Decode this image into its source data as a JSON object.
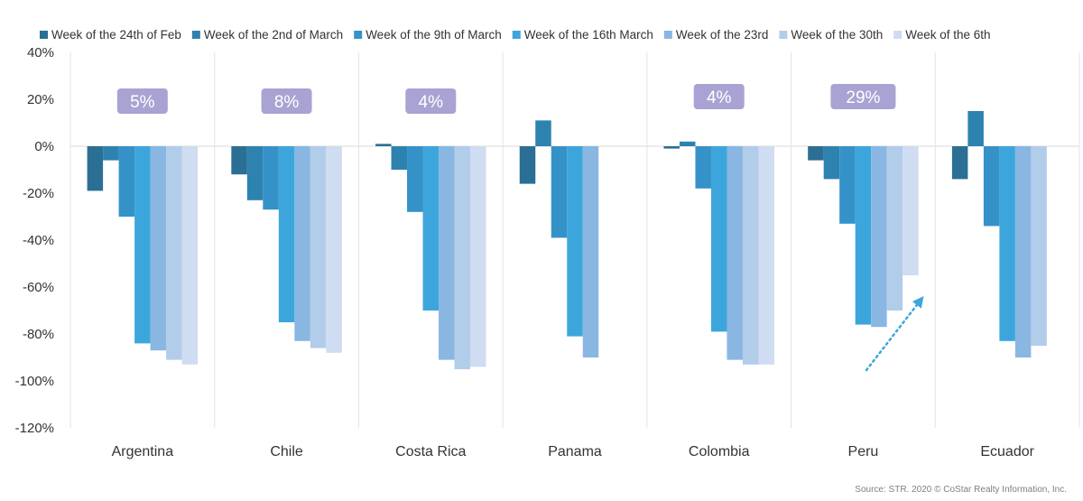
{
  "chart_data": {
    "type": "bar",
    "ylim": [
      -120,
      40
    ],
    "yticks": [
      40,
      20,
      0,
      -20,
      -40,
      -60,
      -80,
      -100,
      -120
    ],
    "tick_suffix": "%",
    "categories": [
      "Argentina",
      "Chile",
      "Costa Rica",
      "Panama",
      "Colombia",
      "Peru",
      "Ecuador"
    ],
    "series": [
      {
        "name": "Week of the 24th of Feb",
        "color": "#2b6f94",
        "values": [
          -19,
          -12,
          1,
          -16,
          -1,
          -6,
          -14
        ]
      },
      {
        "name": "Week of the 2nd of March",
        "color": "#2e82b0",
        "values": [
          -6,
          -23,
          -10,
          11,
          2,
          -14,
          15
        ]
      },
      {
        "name": "Week of the 9th of March",
        "color": "#3592c8",
        "values": [
          -30,
          -27,
          -28,
          -39,
          -18,
          -33,
          -34
        ]
      },
      {
        "name": "Week of the 16th March",
        "color": "#3ca6dc",
        "values": [
          -84,
          -75,
          -70,
          -81,
          -79,
          -76,
          -83
        ]
      },
      {
        "name": "Week of the 23rd",
        "color": "#8ab6e2",
        "values": [
          -87,
          -83,
          -91,
          -90,
          -91,
          -77,
          -90
        ]
      },
      {
        "name": "Week of the 30th",
        "color": "#b2cdea",
        "values": [
          -91,
          -86,
          -95,
          null,
          -93,
          -70,
          -85
        ]
      },
      {
        "name": "Week of the 6th",
        "color": "#cfdcf1",
        "values": [
          -93,
          -88,
          -94,
          null,
          -93,
          -55,
          null
        ]
      }
    ],
    "annotations": [
      {
        "category": "Argentina",
        "text": "5%"
      },
      {
        "category": "Chile",
        "text": "8%"
      },
      {
        "category": "Costa Rica",
        "text": "4%"
      },
      {
        "category": "Colombia",
        "text": "4%"
      },
      {
        "category": "Peru",
        "text": "29%"
      }
    ],
    "badge_color": "#a9a3d3",
    "trend_arrow_color": "#3ca6dc",
    "grid": false,
    "legend_position": "top"
  },
  "source": "Source: STR. 2020 © CoStar Realty Information, Inc."
}
